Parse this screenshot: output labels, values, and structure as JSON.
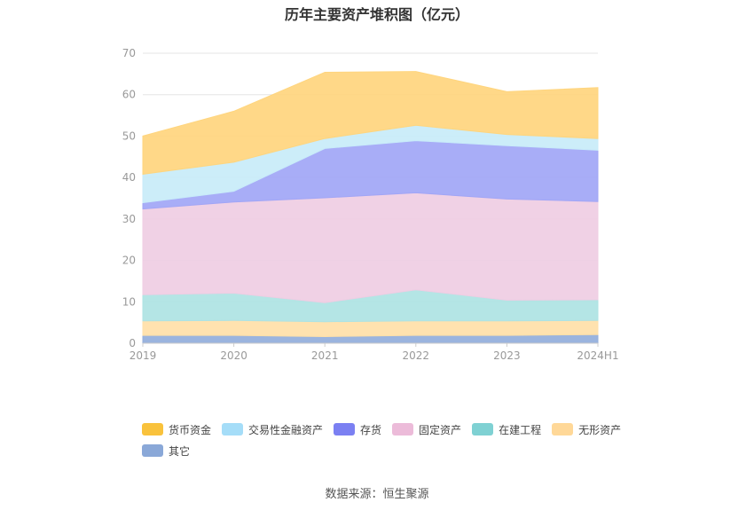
{
  "chart_data": {
    "type": "area",
    "stacked": true,
    "title": "历年主要资产堆积图（亿元）",
    "x": [
      "2019",
      "2020",
      "2021",
      "2022",
      "2023",
      "2024H1"
    ],
    "ylim": [
      0,
      70
    ],
    "yticks": [
      "0",
      "10",
      "20",
      "30",
      "40",
      "50",
      "60",
      "70"
    ],
    "grid": true,
    "legend_position": "bottom-left",
    "series": [
      {
        "name": "其它",
        "color": "#93aedb",
        "values": [
          1.9,
          1.9,
          1.6,
          1.9,
          1.9,
          2.1
        ]
      },
      {
        "name": "无形资产",
        "color": "#ffe0a8",
        "values": [
          3.5,
          3.6,
          3.6,
          3.5,
          3.5,
          3.4
        ]
      },
      {
        "name": "在建工程",
        "color": "#aee3e3",
        "values": [
          6.3,
          6.6,
          4.6,
          7.5,
          5.0,
          5.0
        ]
      },
      {
        "name": "固定资产",
        "color": "#efcde3",
        "values": [
          20.7,
          22.0,
          25.3,
          23.4,
          24.4,
          23.7
        ]
      },
      {
        "name": "存货",
        "color": "#a1a6f6",
        "values": [
          1.5,
          2.6,
          11.9,
          12.6,
          12.9,
          12.4
        ]
      },
      {
        "name": "交易性金融资产",
        "color": "#c8ebf9",
        "values": [
          6.9,
          7.0,
          2.4,
          3.7,
          2.7,
          2.8
        ]
      },
      {
        "name": "货币资金",
        "color": "#ffd57e",
        "values": [
          9.2,
          12.3,
          16.0,
          13.0,
          10.3,
          12.3
        ]
      }
    ],
    "legend": [
      {
        "name": "货币资金",
        "color": "#f9c23c"
      },
      {
        "name": "交易性金融资产",
        "color": "#a5ddf8"
      },
      {
        "name": "存货",
        "color": "#7b80f2"
      },
      {
        "name": "固定资产",
        "color": "#ecbbd9"
      },
      {
        "name": "在建工程",
        "color": "#7fd1d3"
      },
      {
        "name": "无形资产",
        "color": "#ffd898"
      },
      {
        "name": "其它",
        "color": "#8aa8d8"
      }
    ]
  },
  "footer": {
    "source": "数据来源：恒生聚源"
  }
}
